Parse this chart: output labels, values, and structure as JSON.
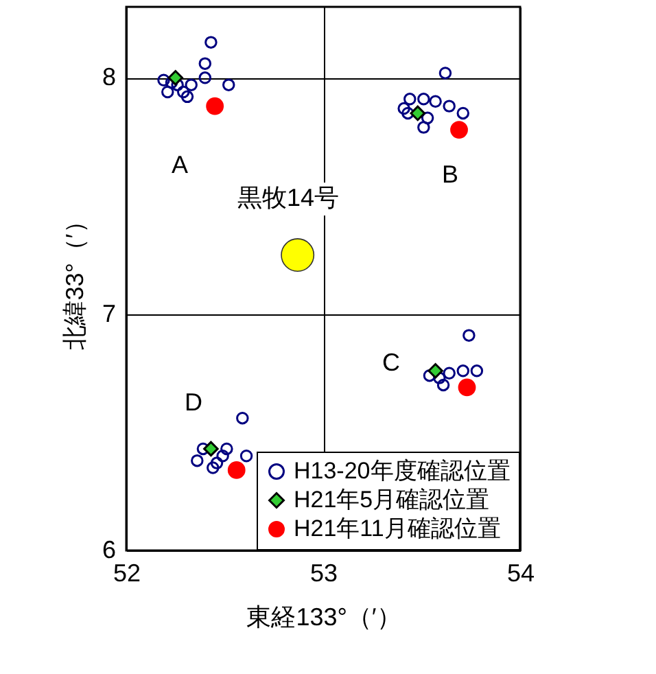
{
  "chart_data": {
    "type": "scatter",
    "xlabel": "東経133°（′）",
    "ylabel": "北緯33°（′）",
    "xlim": [
      52,
      54
    ],
    "ylim": [
      6,
      8.3
    ],
    "xticks": [
      52,
      53,
      54
    ],
    "yticks": [
      6,
      7,
      8
    ],
    "grid": true,
    "legend": "bottom right",
    "series": [
      {
        "name": "H13-20年度確認位置",
        "color": "#000080",
        "marker": "circle",
        "x": [
          52.43,
          52.4,
          52.4,
          52.52,
          52.33,
          52.19,
          52.21,
          52.29,
          52.31,
          52.26,
          52.23,
          53.62,
          53.44,
          53.51,
          53.57,
          53.64,
          53.71,
          53.41,
          53.43,
          53.51,
          53.53,
          53.74,
          53.54,
          53.59,
          53.64,
          53.71,
          53.78,
          53.61,
          52.59,
          52.61,
          52.36,
          52.39,
          52.44,
          52.49,
          52.51,
          52.46
        ],
        "values": [
          8.15,
          8.06,
          8.0,
          7.97,
          7.97,
          7.99,
          7.94,
          7.94,
          7.92,
          7.97,
          7.98,
          8.02,
          7.91,
          7.91,
          7.9,
          7.88,
          7.85,
          7.87,
          7.85,
          7.79,
          7.83,
          6.91,
          6.74,
          6.73,
          6.75,
          6.76,
          6.76,
          6.7,
          6.56,
          6.4,
          6.38,
          6.43,
          6.35,
          6.4,
          6.43,
          6.37
        ]
      },
      {
        "name": "H21年5月確認位置",
        "color": "#33cc33",
        "marker": "diamond",
        "x": [
          52.25,
          53.48,
          53.57,
          52.43
        ],
        "values": [
          8.0,
          7.85,
          6.76,
          6.43
        ]
      },
      {
        "name": "H21年11月確認位置",
        "color": "#ff0000",
        "marker": "circle",
        "x": [
          52.45,
          53.69,
          53.73,
          52.56
        ],
        "values": [
          7.88,
          7.78,
          6.69,
          6.34
        ]
      },
      {
        "type": "bubble",
        "color": "#ffff00",
        "x": [
          52.87
        ],
        "values": [
          7.25
        ],
        "sizes": [
          1
        ]
      }
    ],
    "annotations": [
      "A",
      "B",
      "C",
      "D",
      "黒牧14号"
    ]
  }
}
